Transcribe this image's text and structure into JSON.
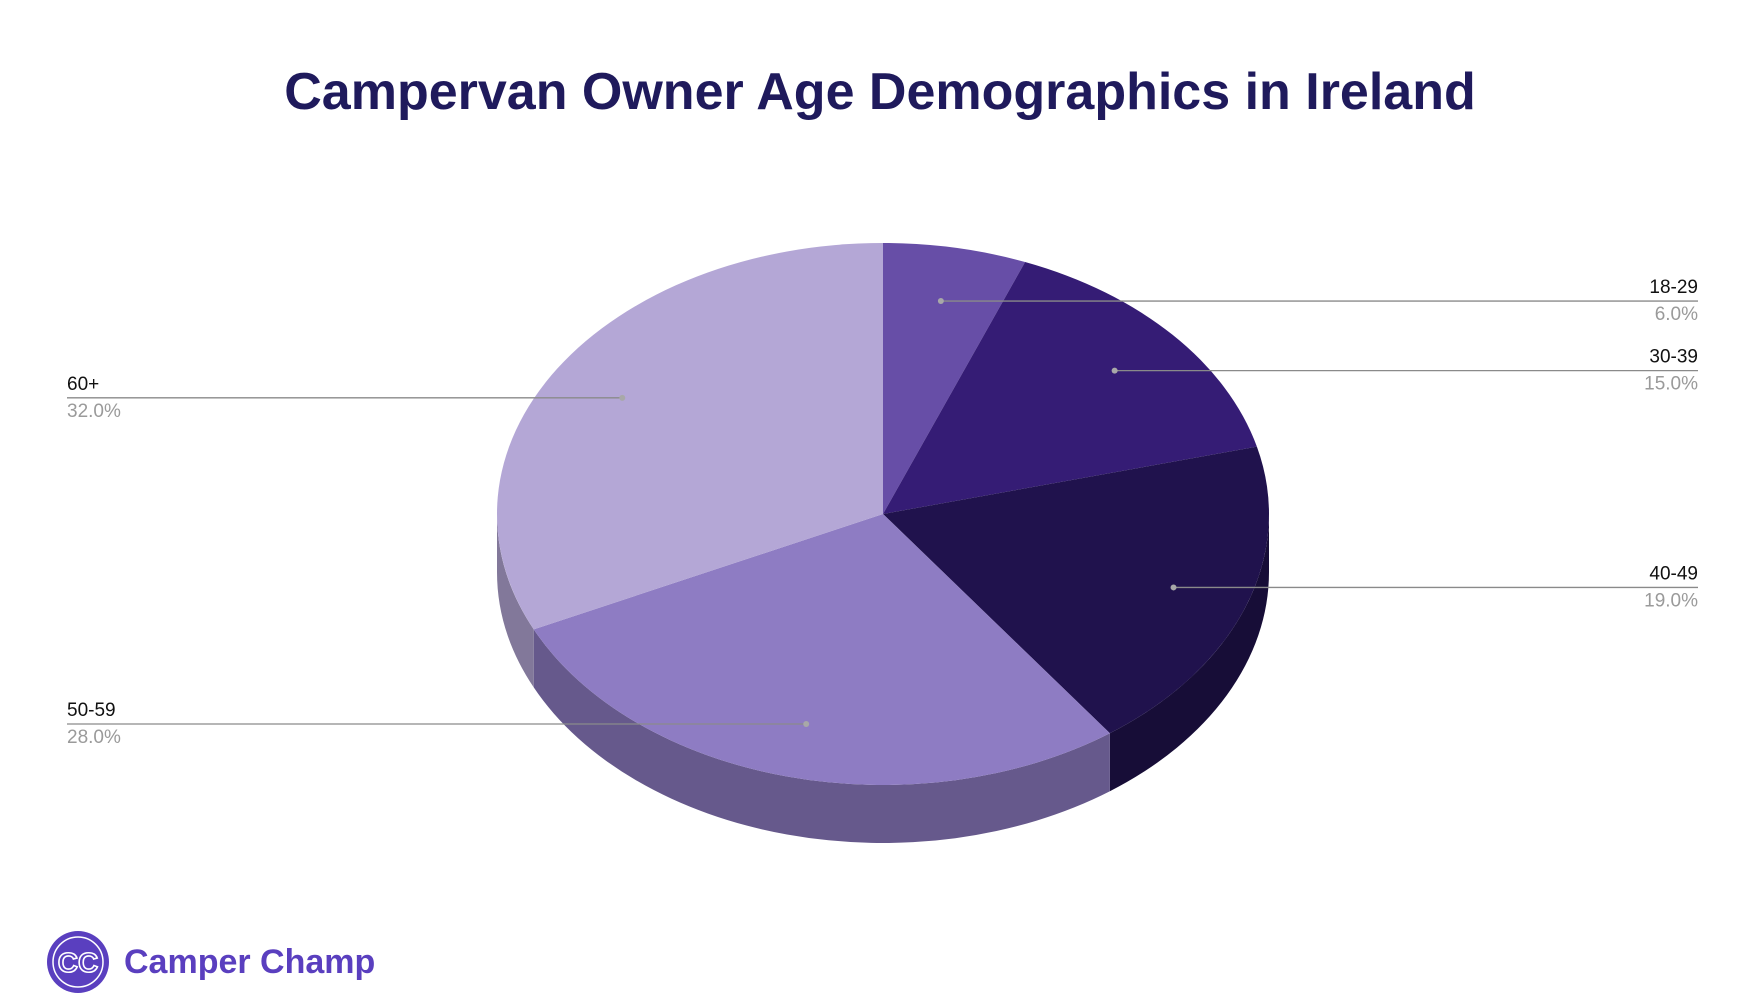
{
  "chart_data": {
    "type": "pie",
    "title": "Campervan Owner Age Demographics in Ireland",
    "start_angle_deg": 0,
    "direction": "clockwise",
    "three_d": true,
    "slices": [
      {
        "label": "18-29",
        "value": 6.0,
        "value_label": "6.0%",
        "color": "#674ea7"
      },
      {
        "label": "30-39",
        "value": 15.0,
        "value_label": "15.0%",
        "color": "#351c75"
      },
      {
        "label": "40-49",
        "value": 19.0,
        "value_label": "19.0%",
        "color": "#20124d"
      },
      {
        "label": "50-59",
        "value": 28.0,
        "value_label": "28.0%",
        "color": "#8e7cc3"
      },
      {
        "label": "60+",
        "value": 32.0,
        "value_label": "32.0%",
        "color": "#b4a7d6"
      }
    ]
  },
  "brand": {
    "name": "Camper Champ",
    "icon_letters": "CC",
    "color": "#5a3fbf"
  }
}
